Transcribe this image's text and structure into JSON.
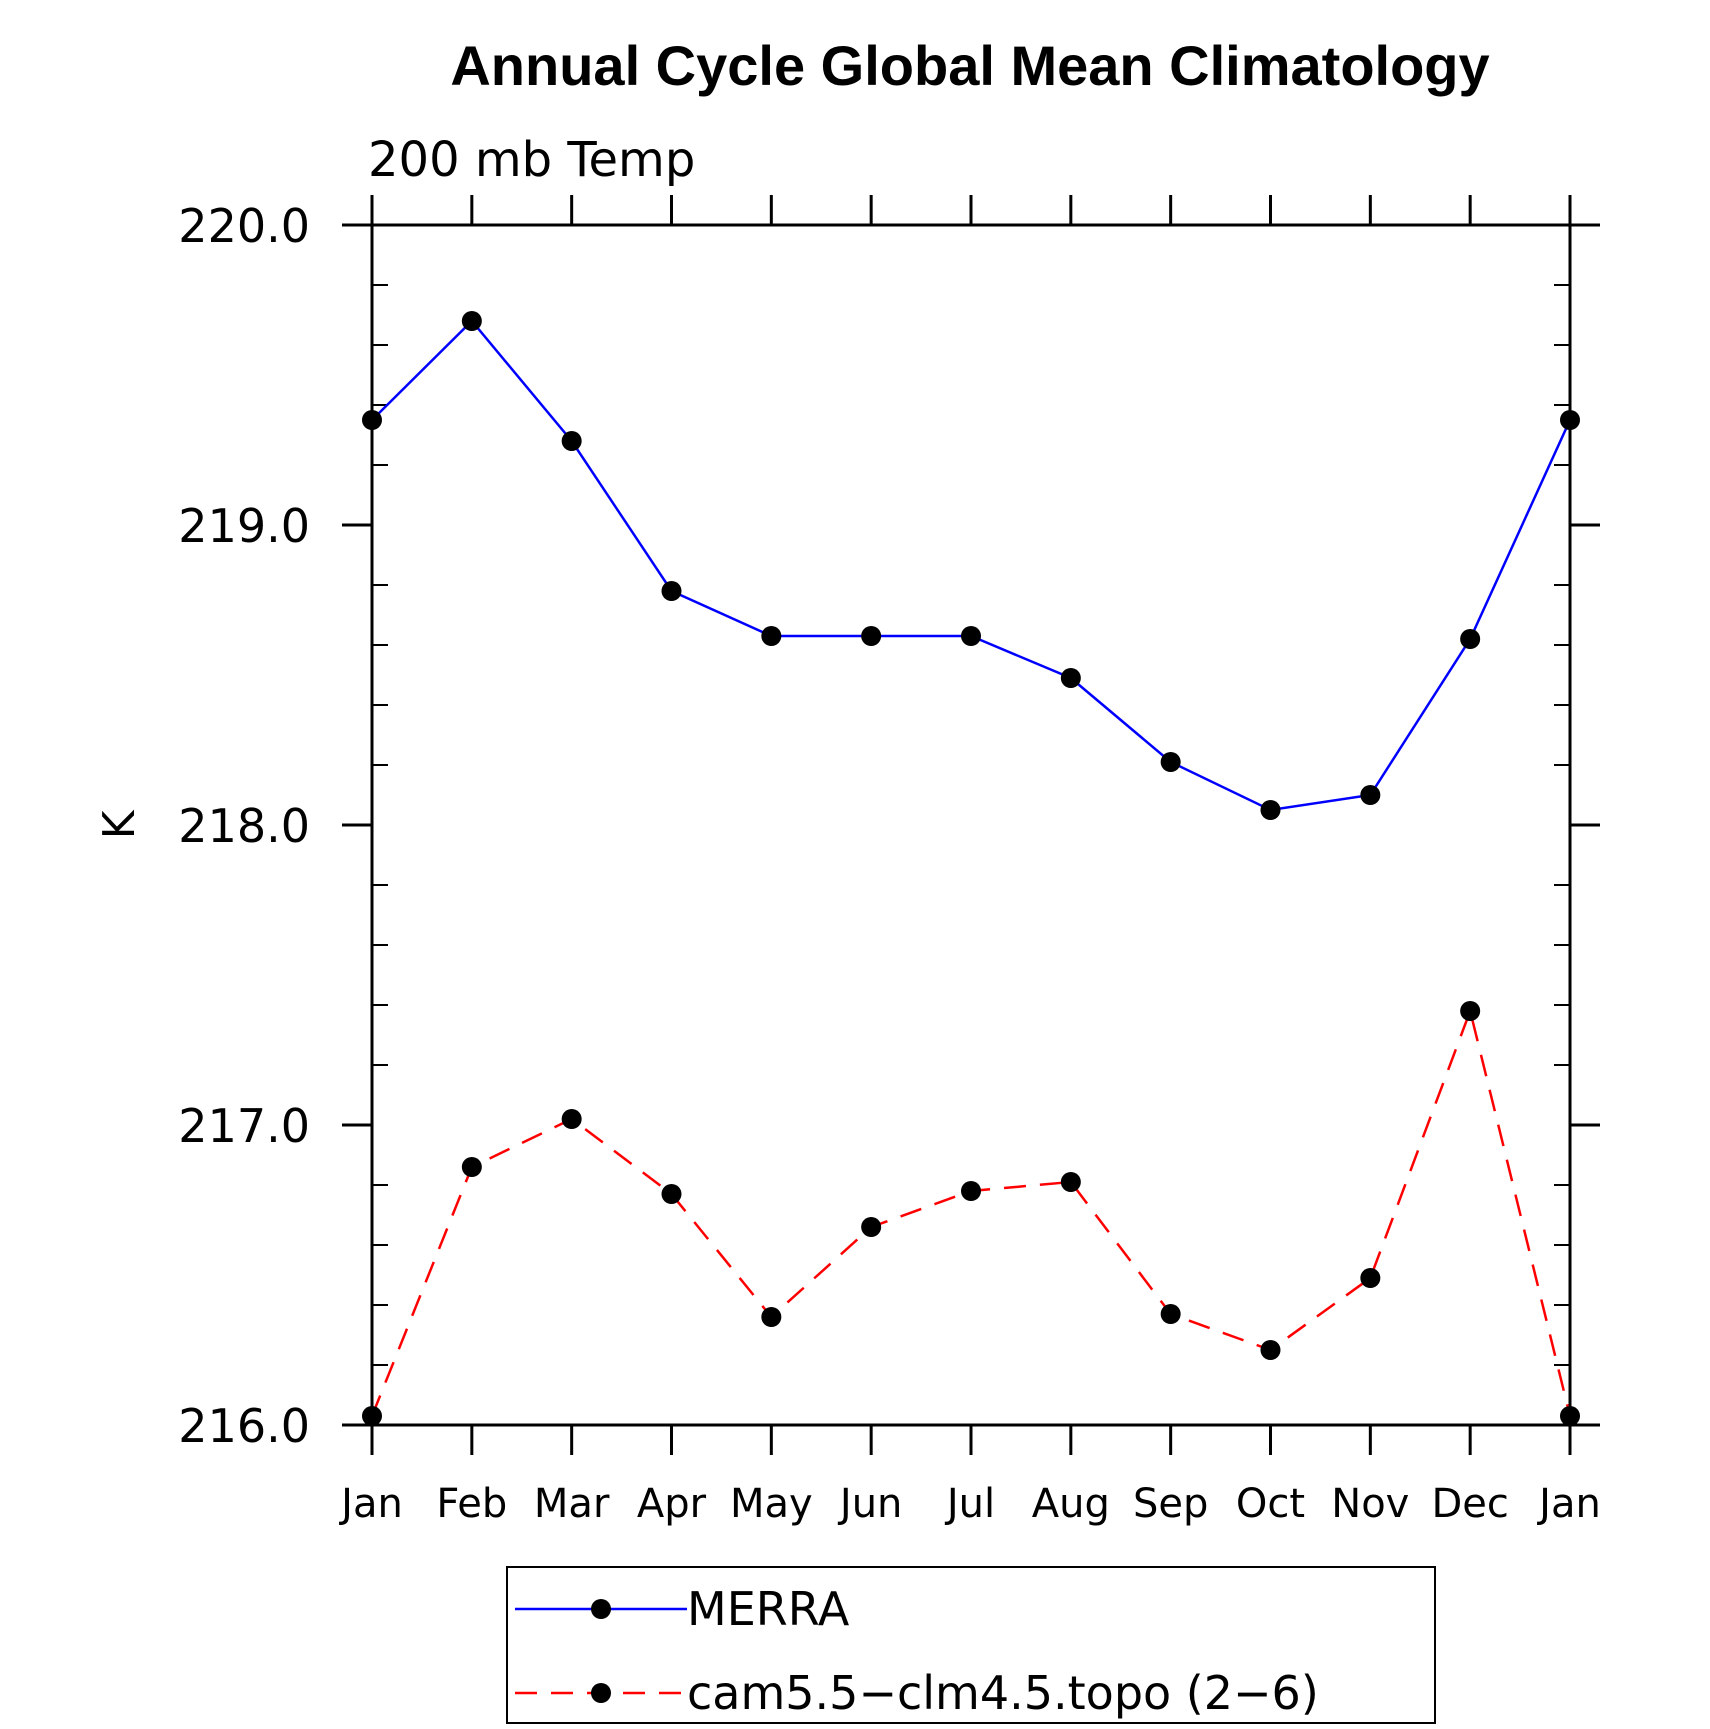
{
  "chart_data": {
    "type": "line",
    "title": "Annual Cycle Global Mean Climatology",
    "subtitle": "200 mb Temp",
    "xlabel": "",
    "ylabel": "K",
    "categories": [
      "Jan",
      "Feb",
      "Mar",
      "Apr",
      "May",
      "Jun",
      "Jul",
      "Aug",
      "Sep",
      "Oct",
      "Nov",
      "Dec",
      "Jan"
    ],
    "ylim": [
      216.0,
      220.0
    ],
    "y_major_ticks": [
      216.0,
      217.0,
      218.0,
      219.0,
      220.0
    ],
    "y_tick_labels": [
      "216.0",
      "217.0",
      "218.0",
      "219.0",
      "220.0"
    ],
    "y_minor_step": 0.2,
    "grid": false,
    "legend_position": "bottom",
    "series": [
      {
        "name": "MERRA",
        "color": "#0000ff",
        "line_style": "solid",
        "marker": "filled-circle",
        "marker_color": "#000000",
        "values": [
          219.35,
          219.68,
          219.28,
          218.78,
          218.63,
          218.63,
          218.63,
          218.49,
          218.21,
          218.05,
          218.1,
          218.62,
          219.35
        ]
      },
      {
        "name": "cam5.5−clm4.5.topo (2−6)",
        "color": "#ff0000",
        "line_style": "dashed",
        "marker": "filled-circle",
        "marker_color": "#000000",
        "values": [
          216.03,
          216.86,
          217.02,
          216.77,
          216.36,
          216.66,
          216.78,
          216.81,
          216.37,
          216.25,
          216.49,
          217.38,
          216.03
        ]
      }
    ]
  }
}
